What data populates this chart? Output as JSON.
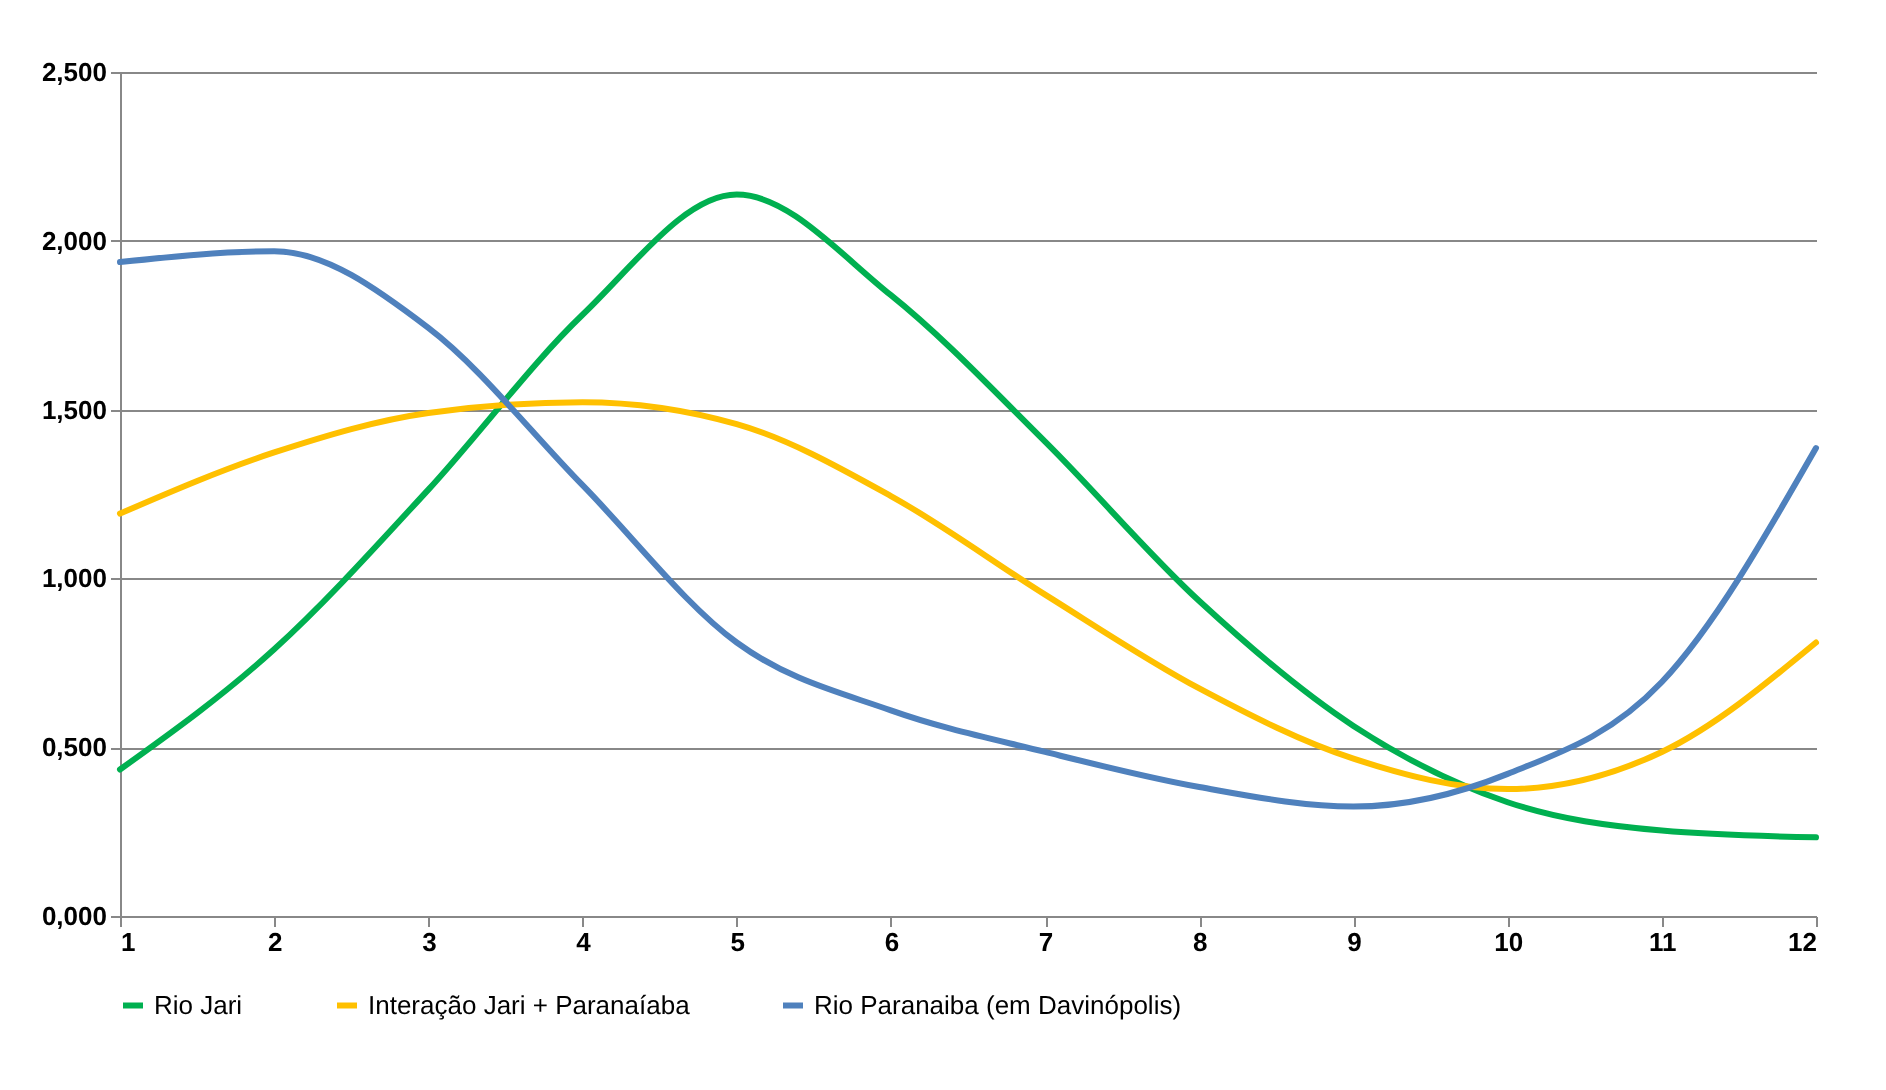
{
  "chart_data": {
    "type": "line",
    "x": [
      1,
      2,
      3,
      4,
      5,
      6,
      7,
      8,
      9,
      10,
      11,
      12
    ],
    "series": [
      {
        "name": "Rio Jari",
        "color": "#00b050",
        "values": [
          0.434,
          0.79,
          1.263,
          1.781,
          2.137,
          1.839,
          1.405,
          0.933,
          0.563,
          0.337,
          0.253,
          0.233
        ]
      },
      {
        "name": "Interação Jari + Paranaíaba",
        "color": "#ffc000",
        "values": [
          1.192,
          1.373,
          1.49,
          1.522,
          1.457,
          1.244,
          0.952,
          0.674,
          0.466,
          0.376,
          0.486,
          0.81
        ]
      },
      {
        "name": "Rio Paranaiba  (em Davinópolis)",
        "color": "#4f81bd",
        "values": [
          1.937,
          1.969,
          1.742,
          1.276,
          0.81,
          0.609,
          0.486,
          0.382,
          0.324,
          0.421,
          0.693,
          1.386
        ]
      }
    ],
    "xlim": [
      1,
      12
    ],
    "xticks": [
      1,
      2,
      3,
      4,
      5,
      6,
      7,
      8,
      9,
      10,
      11,
      12
    ],
    "ylim": [
      0,
      2.5
    ],
    "yticks": [
      {
        "value": 0,
        "label": "0,000"
      },
      {
        "value": 0.5,
        "label": "0,500"
      },
      {
        "value": 1,
        "label": "1,000"
      },
      {
        "value": 1.5,
        "label": "1,500"
      },
      {
        "value": 2,
        "label": "2,000"
      },
      {
        "value": 2.5,
        "label": "2,500"
      }
    ],
    "grid": "y",
    "legend": "bottom",
    "marker": "none",
    "line_style": "solid"
  }
}
